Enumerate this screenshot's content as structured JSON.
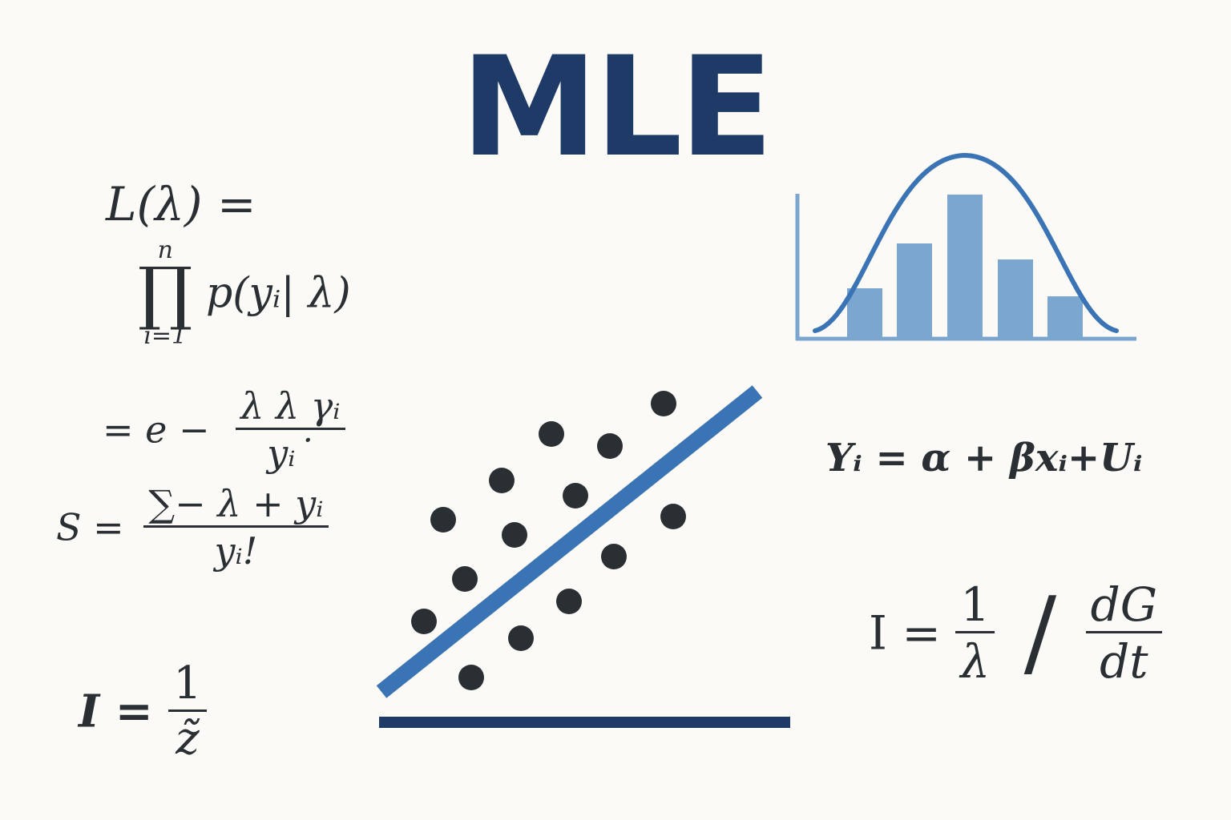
{
  "title": "MLE",
  "colors": {
    "title": "#1e3a66",
    "ink": "#2a2f33",
    "blue": "#3a74b5",
    "bar": "#7ba6cf",
    "navy": "#1e3a66"
  },
  "equations": {
    "likelihood_lhs": "L(λ) =",
    "prod_upper": "n",
    "prod_symbol": "∏",
    "prod_lower": "i=1",
    "prod_body": "p(yᵢ| λ)",
    "eq2_prefix": "= e −",
    "eq2_num": "λ λ γᵢ",
    "eq2_den": "yᵢ˙",
    "score_lhs": "S =",
    "score_num": "∑− λ + yᵢ",
    "score_den": "yᵢ!",
    "info_lhs": "I =",
    "info_num": "1",
    "info_den": "z̃",
    "regression": "Yᵢ = α + βxᵢ+Uᵢ",
    "info2_lhs": "I =",
    "info2_frac_num": "1",
    "info2_frac_den": "λ",
    "info2_slash": "/",
    "info2_num": "dG",
    "info2_den": "dt"
  },
  "icons": [
    "histogram-with-normal-curve-icon",
    "scatter-plot-with-regression-line-icon"
  ]
}
